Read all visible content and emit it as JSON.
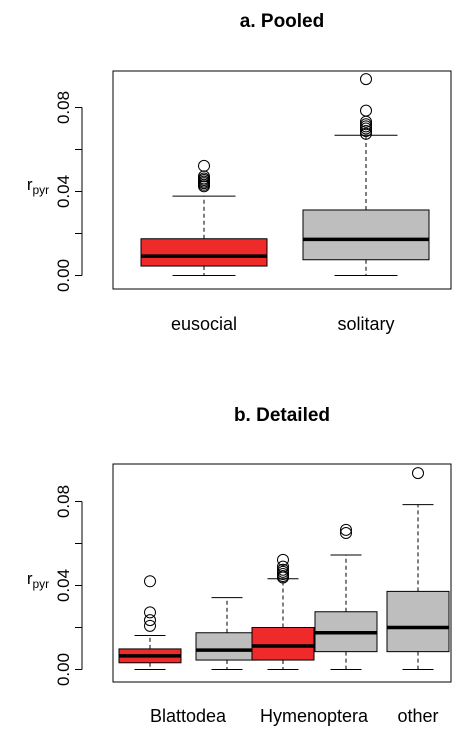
{
  "chart_data": [
    {
      "type": "boxplot",
      "title": "a. Pooled",
      "ylabel": "r",
      "ylabel_subscript": "pyr",
      "ylim": [
        -0.005,
        0.097
      ],
      "yticks": [
        0.0,
        0.04,
        0.08
      ],
      "ytick_labels": [
        "0.00",
        "0.04",
        "0.08"
      ],
      "categories": [
        "eusocial",
        "solitary"
      ],
      "category_labels": [
        "eusocial",
        "solitary"
      ],
      "boxes": [
        {
          "name": "eusocial",
          "color": "#EE2A2A",
          "whisker_low": 0.0,
          "q1": 0.0045,
          "median": 0.0092,
          "q3": 0.0175,
          "whisker_high": 0.0378,
          "outliers": [
            0.0425,
            0.0432,
            0.044,
            0.0447,
            0.0455,
            0.0462,
            0.0472,
            0.0522
          ]
        },
        {
          "name": "solitary",
          "color": "#BEBEBE",
          "whisker_low": 0.0,
          "q1": 0.0075,
          "median": 0.0172,
          "q3": 0.0312,
          "whisker_high": 0.0668,
          "outliers": [
            0.0675,
            0.0688,
            0.07,
            0.071,
            0.072,
            0.0732,
            0.0785,
            0.0935
          ]
        }
      ]
    },
    {
      "type": "boxplot",
      "title": "b. Detailed",
      "ylabel": "r",
      "ylabel_subscript": "pyr",
      "ylim": [
        -0.005,
        0.097
      ],
      "yticks": [
        0.0,
        0.04,
        0.08
      ],
      "ytick_labels": [
        "0.00",
        "0.04",
        "0.08"
      ],
      "categories": [
        "Blattodea eusocial",
        "Blattodea solitary",
        "Hymenoptera eusocial",
        "Hymenoptera solitary",
        "other"
      ],
      "category_labels": [
        "Blattodea",
        "Hymenoptera",
        "other"
      ],
      "boxes": [
        {
          "name": "Blattodea eusocial",
          "color": "#EE2A2A",
          "whisker_low": 0.0,
          "q1": 0.0032,
          "median": 0.0065,
          "q3": 0.0098,
          "whisker_high": 0.0162,
          "outliers": [
            0.0208,
            0.0235,
            0.0272,
            0.042
          ]
        },
        {
          "name": "Blattodea solitary",
          "color": "#BEBEBE",
          "whisker_low": 0.0,
          "q1": 0.0045,
          "median": 0.0092,
          "q3": 0.0175,
          "whisker_high": 0.0342,
          "outliers": []
        },
        {
          "name": "Hymenoptera eusocial",
          "color": "#EE2A2A",
          "whisker_low": 0.0,
          "q1": 0.0045,
          "median": 0.0112,
          "q3": 0.02,
          "whisker_high": 0.0432,
          "outliers": [
            0.0438,
            0.0445,
            0.0455,
            0.0465,
            0.0475,
            0.049,
            0.0522
          ]
        },
        {
          "name": "Hymenoptera solitary",
          "color": "#BEBEBE",
          "whisker_low": 0.0,
          "q1": 0.0085,
          "median": 0.0175,
          "q3": 0.0275,
          "whisker_high": 0.0545,
          "outliers": [
            0.065,
            0.0665
          ]
        },
        {
          "name": "other",
          "color": "#BEBEBE",
          "whisker_low": 0.0,
          "q1": 0.0085,
          "median": 0.02,
          "q3": 0.0372,
          "whisker_high": 0.0785,
          "outliers": [
            0.0935
          ]
        }
      ]
    }
  ]
}
